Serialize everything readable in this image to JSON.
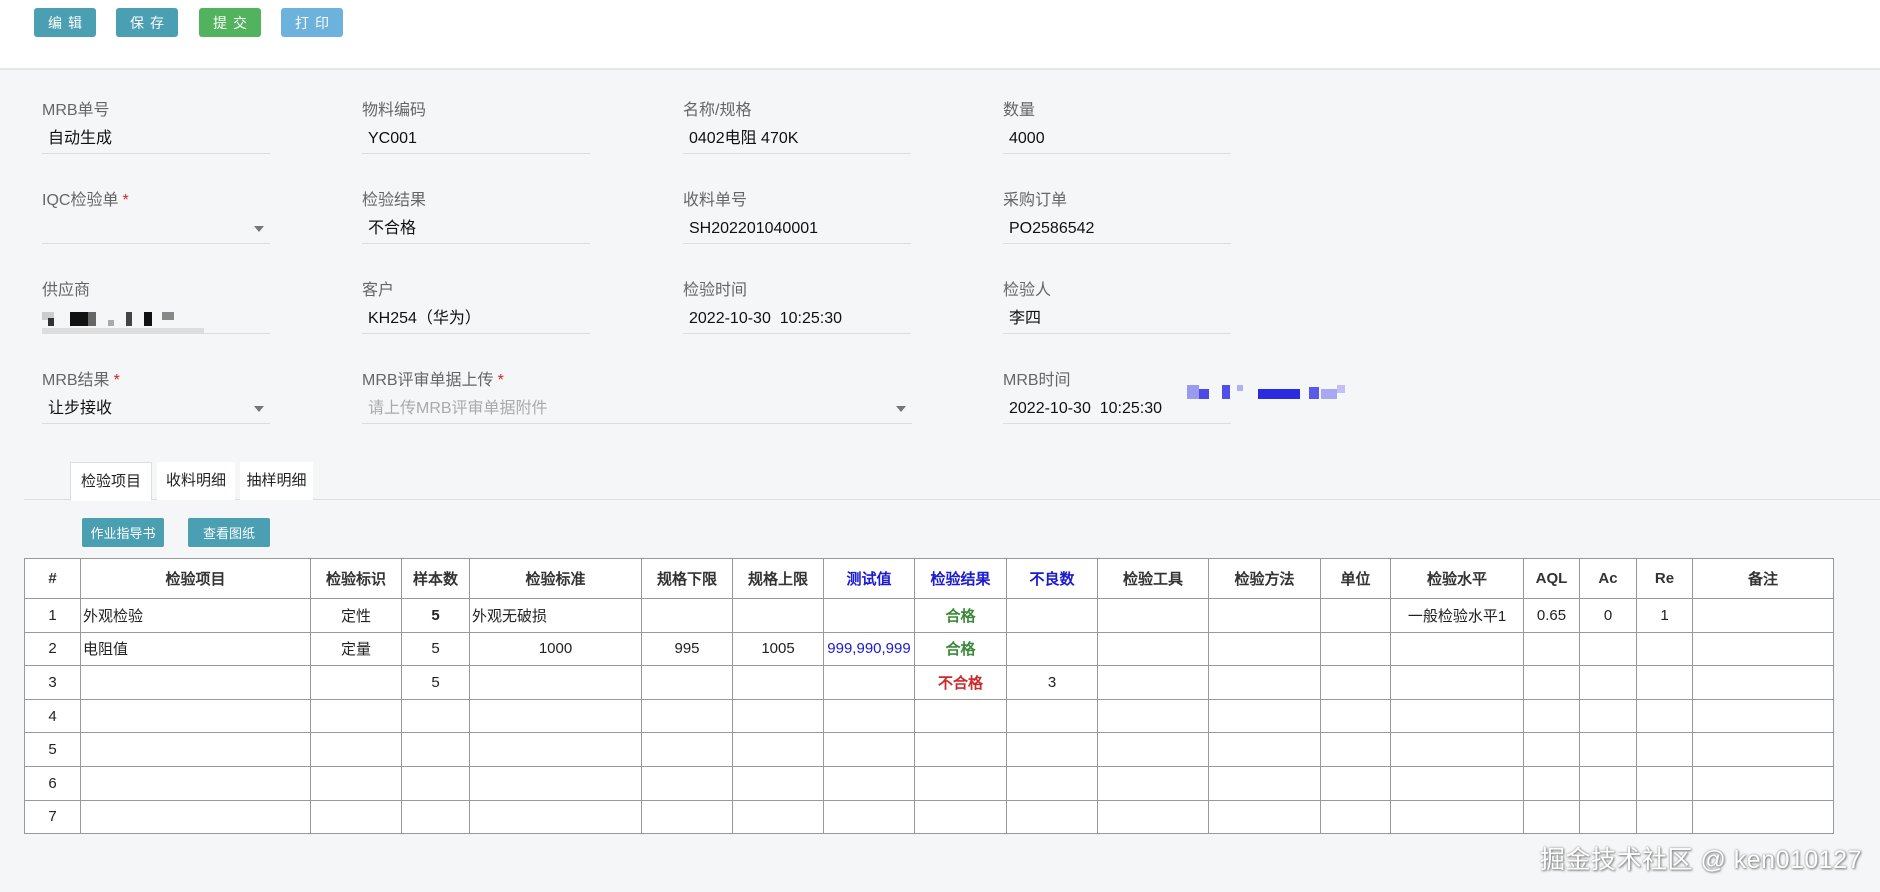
{
  "toolbar": {
    "edit": "编辑",
    "save": "保存",
    "submit": "提交",
    "print": "打印",
    "colors": {
      "edit": "#4a9fb3",
      "save": "#4a9fb3",
      "submit": "#52b35e",
      "print": "#6cb2dc"
    }
  },
  "form": {
    "mrb_no": {
      "label": "MRB单号",
      "value": "自动生成"
    },
    "material_code": {
      "label": "物料编码",
      "value": "YC001"
    },
    "name_spec": {
      "label": "名称/规格",
      "value": "0402电阻 470K"
    },
    "quantity": {
      "label": "数量",
      "value": "4000"
    },
    "iqc_order": {
      "label": "IQC检验单",
      "required": "*",
      "value": ""
    },
    "inspection_result": {
      "label": "检验结果",
      "value": "不合格"
    },
    "receipt_no": {
      "label": "收料单号",
      "value": "SH202201040001"
    },
    "purchase_order": {
      "label": "采购订单",
      "value": "PO2586542"
    },
    "supplier": {
      "label": "供应商"
    },
    "customer": {
      "label": "客户",
      "value": "KH254（华为）"
    },
    "inspection_time": {
      "label": "检验时间",
      "value": "2022-10-30  10:25:30"
    },
    "inspector": {
      "label": "检验人",
      "value": "李四"
    },
    "mrb_result": {
      "label": "MRB结果",
      "required": "*",
      "value": "让步接收"
    },
    "mrb_upload": {
      "label": "MRB评审单据上传",
      "required": "*",
      "placeholder": "请上传MRB评审单据附件"
    },
    "mrb_time": {
      "label": "MRB时间",
      "value": "2022-10-30  10:25:30"
    }
  },
  "tabs": [
    {
      "label": "检验项目",
      "active": true
    },
    {
      "label": "收料明细"
    },
    {
      "label": "抽样明细"
    }
  ],
  "sub_toolbar": {
    "work_instruction": "作业指导书",
    "view_drawing": "查看图纸"
  },
  "table": {
    "columns": [
      "#",
      "检验项目",
      "检验标识",
      "样本数",
      "检验标准",
      "规格下限",
      "规格上限",
      "测试值",
      "检验结果",
      "不良数",
      "检验工具",
      "检验方法",
      "单位",
      "检验水平",
      "AQL",
      "Ac",
      "Re",
      "备注"
    ],
    "highlight_columns": [
      "测试值",
      "检验结果",
      "不良数"
    ],
    "rows": [
      [
        "1",
        "外观检验",
        "定性",
        "5",
        "外观无破损",
        "",
        "",
        "",
        "合格",
        "",
        "",
        "",
        "",
        "一般检验水平1",
        "0.65",
        "0",
        "1",
        ""
      ],
      [
        "2",
        "电阻值",
        "定量",
        "5",
        "1000",
        "995",
        "1005",
        "999,990,999",
        "合格",
        "",
        "",
        "",
        "",
        "",
        "",
        "",
        "",
        ""
      ],
      [
        "3",
        "",
        "",
        "5",
        "",
        "",
        "",
        "",
        "不合格",
        "3",
        "",
        "",
        "",
        "",
        "",
        "",
        "",
        ""
      ],
      [
        "4",
        "",
        "",
        "",
        "",
        "",
        "",
        "",
        "",
        "",
        "",
        "",
        "",
        "",
        "",
        "",
        "",
        ""
      ],
      [
        "5",
        "",
        "",
        "",
        "",
        "",
        "",
        "",
        "",
        "",
        "",
        "",
        "",
        "",
        "",
        "",
        "",
        ""
      ],
      [
        "6",
        "",
        "",
        "",
        "",
        "",
        "",
        "",
        "",
        "",
        "",
        "",
        "",
        "",
        "",
        "",
        "",
        ""
      ],
      [
        "7",
        "",
        "",
        "",
        "",
        "",
        "",
        "",
        "",
        "",
        "",
        "",
        "",
        "",
        "",
        "",
        "",
        ""
      ]
    ],
    "colors": {
      "pass": "#3a8a3a",
      "fail": "#cc2a2a",
      "test_value": "#1a1ad0"
    }
  },
  "watermark": "掘金技术社区 @ ken010127"
}
